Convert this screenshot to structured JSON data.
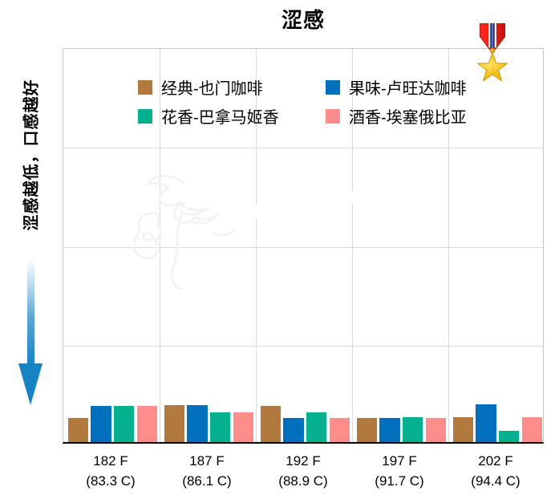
{
  "chart_data": {
    "type": "bar",
    "title": "涩感",
    "xlabel": "",
    "ylabel": "涩感越低，口感越好",
    "ylim": [
      0,
      10
    ],
    "grid": true,
    "y_tick_labels_visible": false,
    "legend_position": "top-center-inside",
    "categories": [
      {
        "label": "182 F",
        "sublabel": "(83.3 C)"
      },
      {
        "label": "187 F",
        "sublabel": "(86.1 C)"
      },
      {
        "label": "192 F",
        "sublabel": "(88.9 C)"
      },
      {
        "label": "197 F",
        "sublabel": "(91.7 C)"
      },
      {
        "label": "202 F",
        "sublabel": "(94.4 C)"
      }
    ],
    "series": [
      {
        "name": "经典-也门咖啡",
        "color": "#B1793D",
        "values": [
          0.6,
          0.93,
          0.92,
          0.6,
          0.62
        ]
      },
      {
        "name": "果味-卢旺达咖啡",
        "color": "#0070BC",
        "values": [
          0.92,
          0.93,
          0.6,
          0.6,
          0.95
        ]
      },
      {
        "name": "花香-巴拿马姬香",
        "color": "#04B08D",
        "values": [
          0.92,
          0.75,
          0.76,
          0.62,
          0.28
        ]
      },
      {
        "name": "酒香-埃塞俄比亚",
        "color": "#FF8D8B",
        "values": [
          0.92,
          0.75,
          0.6,
          0.6,
          0.62
        ]
      }
    ]
  },
  "annotations": {
    "y_axis_note": "涩感越低，口感越好",
    "arrow_direction": "down",
    "arrow_color": "#1782C4"
  },
  "icons": {
    "medal": {
      "name": "medal-icon",
      "glyph": "🎖",
      "colors": {
        "ribbon": "#E8251C",
        "stripe": "#2A3F8F",
        "star": "#F7C622"
      }
    }
  },
  "colors": {
    "background": "#FFFFFF",
    "gridline": "#DADADA",
    "plot_border": "#C8C8C8",
    "axis_line": "#000000",
    "text": "#000000"
  }
}
